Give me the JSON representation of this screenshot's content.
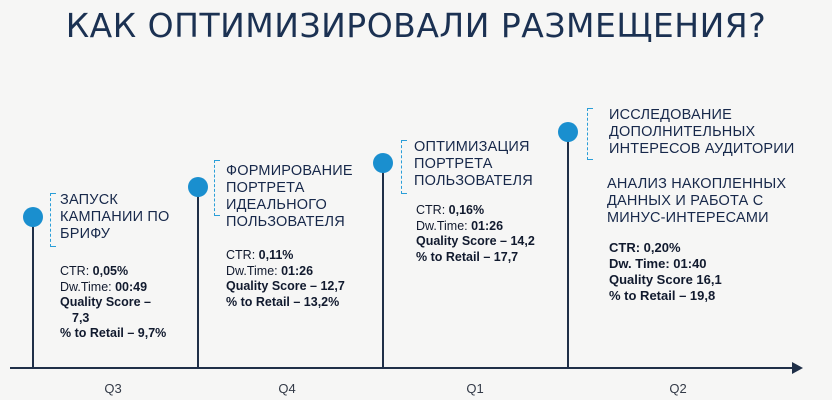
{
  "title": "КАК ОПТИМИЗИРОВАЛИ РАЗМЕЩЕНИЯ?",
  "stages": [
    {
      "heading": [
        "ЗАПУСК",
        "КАМПАНИИ ПО",
        "БРИФУ"
      ],
      "ctr_label": "CTR: ",
      "ctr_value": "0,05%",
      "dw_label": "Dw.Time: ",
      "dw_value": "00:49",
      "qs_line1": "Quality Score –",
      "qs_line2": "7,3",
      "retail": "% to Retail – 9,7%",
      "quarter": "Q3"
    },
    {
      "heading": [
        "ФОРМИРОВАНИЕ",
        "ПОРТРЕТА",
        "ИДЕАЛЬНОГО",
        "ПОЛЬЗОВАТЕЛЯ"
      ],
      "ctr_label": "CTR: ",
      "ctr_value": "0,11%",
      "dw_label": "Dw.Time: ",
      "dw_value": "01:26",
      "qs_line1": "Quality Score – 12,7",
      "retail": "% to Retail – 13,2%",
      "quarter": "Q4"
    },
    {
      "heading": [
        "ОПТИМИЗАЦИЯ",
        "ПОРТРЕТА",
        "ПОЛЬЗОВАТЕЛЯ"
      ],
      "ctr_label": "CTR: ",
      "ctr_value": "0,16%",
      "dw_label": "Dw.Time: ",
      "dw_value": "01:26",
      "qs_line1": "Quality Score – 14,2",
      "retail": "% to Retail – 17,7",
      "quarter": "Q1"
    },
    {
      "heading": [
        "ИССЛЕДОВАНИЕ",
        "ДОПОЛНИТЕЛЬНЫХ",
        "ИНТЕРЕСОВ АУДИТОРИИ"
      ],
      "subheading": [
        "АНАЛИЗ НАКОПЛЕННЫХ",
        "ДАННЫХ И РАБОТА С",
        "МИНУС-ИНТЕРЕСАМИ"
      ],
      "ctr_text": "CTR: 0,20%",
      "dw_text": "Dw. Time: 01:40",
      "qs_line1": "Quality Score 16,1",
      "retail": "% to Retail – 19,8",
      "quarter": "Q2"
    }
  ]
}
